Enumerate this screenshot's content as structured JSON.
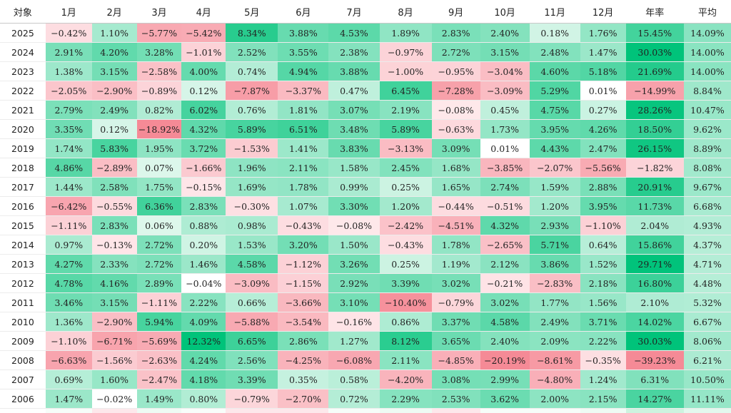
{
  "chart_data": {
    "type": "heatmap",
    "columns": [
      "対象",
      "1月",
      "2月",
      "3月",
      "4月",
      "5月",
      "6月",
      "7月",
      "8月",
      "9月",
      "10月",
      "11月",
      "12月",
      "年率",
      "平均"
    ],
    "rows": [
      {
        "year": "2025",
        "values": [
          "−0.42%",
          "1.10%",
          "−5.77%",
          "−5.42%",
          "8.34%",
          "3.88%",
          "4.53%",
          "1.89%",
          "2.83%",
          "2.40%",
          "0.18%",
          "1.76%",
          "15.45%",
          "14.09%"
        ]
      },
      {
        "year": "2024",
        "values": [
          "2.91%",
          "4.20%",
          "3.28%",
          "−1.01%",
          "2.52%",
          "3.55%",
          "2.38%",
          "−0.97%",
          "2.72%",
          "3.15%",
          "2.48%",
          "1.47%",
          "30.03%",
          "14.00%"
        ]
      },
      {
        "year": "2023",
        "values": [
          "1.38%",
          "3.15%",
          "−2.58%",
          "4.00%",
          "0.74%",
          "4.94%",
          "3.88%",
          "−1.00%",
          "−0.95%",
          "−3.04%",
          "4.60%",
          "5.18%",
          "21.69%",
          "14.00%"
        ]
      },
      {
        "year": "2022",
        "values": [
          "−2.05%",
          "−2.90%",
          "−0.89%",
          "0.12%",
          "−7.87%",
          "−3.37%",
          "0.47%",
          "6.45%",
          "−7.28%",
          "−3.09%",
          "5.29%",
          "0.01%",
          "−14.99%",
          "8.84%"
        ]
      },
      {
        "year": "2021",
        "values": [
          "2.79%",
          "2.49%",
          "0.82%",
          "6.02%",
          "0.76%",
          "1.81%",
          "3.07%",
          "2.19%",
          "−0.08%",
          "0.45%",
          "4.75%",
          "0.27%",
          "28.26%",
          "10.47%"
        ]
      },
      {
        "year": "2020",
        "values": [
          "3.35%",
          "0.12%",
          "−18.92%",
          "4.32%",
          "5.89%",
          "6.51%",
          "3.48%",
          "5.89%",
          "−0.63%",
          "1.73%",
          "3.95%",
          "4.26%",
          "18.50%",
          "9.62%"
        ]
      },
      {
        "year": "2019",
        "values": [
          "1.74%",
          "5.83%",
          "1.95%",
          "3.72%",
          "−1.53%",
          "1.41%",
          "3.83%",
          "−3.13%",
          "3.09%",
          "0.01%",
          "4.43%",
          "2.47%",
          "26.15%",
          "8.89%"
        ]
      },
      {
        "year": "2018",
        "values": [
          "4.86%",
          "−2.89%",
          "0.07%",
          "−1.66%",
          "1.96%",
          "2.11%",
          "1.58%",
          "2.45%",
          "1.68%",
          "−3.85%",
          "−2.07%",
          "−5.56%",
          "−1.82%",
          "8.08%"
        ]
      },
      {
        "year": "2017",
        "values": [
          "1.44%",
          "2.58%",
          "1.75%",
          "−0.15%",
          "1.69%",
          "1.78%",
          "0.99%",
          "0.25%",
          "1.65%",
          "2.74%",
          "1.59%",
          "2.88%",
          "20.91%",
          "9.67%"
        ]
      },
      {
        "year": "2016",
        "values": [
          "−6.42%",
          "−0.55%",
          "6.36%",
          "2.83%",
          "−0.30%",
          "1.07%",
          "3.30%",
          "1.20%",
          "−0.44%",
          "−0.51%",
          "1.20%",
          "3.95%",
          "11.73%",
          "6.68%"
        ]
      },
      {
        "year": "2015",
        "values": [
          "−1.11%",
          "2.83%",
          "0.06%",
          "0.88%",
          "0.98%",
          "−0.43%",
          "−0.08%",
          "−2.42%",
          "−4.51%",
          "4.32%",
          "2.93%",
          "−1.10%",
          "2.04%",
          "4.93%"
        ]
      },
      {
        "year": "2014",
        "values": [
          "0.97%",
          "−0.13%",
          "2.72%",
          "0.20%",
          "1.53%",
          "3.20%",
          "1.50%",
          "−0.43%",
          "1.78%",
          "−2.65%",
          "5.71%",
          "0.64%",
          "15.86%",
          "4.37%"
        ]
      },
      {
        "year": "2013",
        "values": [
          "4.27%",
          "2.33%",
          "2.72%",
          "1.46%",
          "4.58%",
          "−1.12%",
          "3.26%",
          "0.25%",
          "1.19%",
          "2.12%",
          "3.86%",
          "1.52%",
          "29.71%",
          "4.71%"
        ]
      },
      {
        "year": "2012",
        "values": [
          "4.78%",
          "4.16%",
          "2.89%",
          "−0.04%",
          "−3.09%",
          "−1.15%",
          "2.92%",
          "3.39%",
          "3.02%",
          "−0.21%",
          "−2.83%",
          "2.18%",
          "16.80%",
          "4.48%"
        ]
      },
      {
        "year": "2011",
        "values": [
          "3.46%",
          "3.15%",
          "−1.11%",
          "2.22%",
          "0.66%",
          "−3.66%",
          "3.10%",
          "−10.40%",
          "−0.79%",
          "3.02%",
          "1.77%",
          "1.56%",
          "2.10%",
          "5.32%"
        ]
      },
      {
        "year": "2010",
        "values": [
          "1.36%",
          "−2.90%",
          "5.94%",
          "4.09%",
          "−5.88%",
          "−3.54%",
          "−0.16%",
          "0.86%",
          "3.37%",
          "4.58%",
          "2.49%",
          "3.71%",
          "14.02%",
          "6.67%"
        ]
      },
      {
        "year": "2009",
        "values": [
          "−1.10%",
          "−6.71%",
          "−5.69%",
          "12.32%",
          "6.65%",
          "2.86%",
          "1.27%",
          "8.12%",
          "3.65%",
          "2.40%",
          "2.09%",
          "2.22%",
          "30.03%",
          "8.06%"
        ]
      },
      {
        "year": "2008",
        "values": [
          "−6.63%",
          "−1.56%",
          "−2.63%",
          "4.24%",
          "2.56%",
          "−4.25%",
          "−6.08%",
          "2.11%",
          "−4.85%",
          "−20.19%",
          "−8.61%",
          "−0.35%",
          "−39.23%",
          "6.21%"
        ]
      },
      {
        "year": "2007",
        "values": [
          "0.69%",
          "1.60%",
          "−2.47%",
          "4.18%",
          "3.39%",
          "0.35%",
          "0.58%",
          "−4.20%",
          "3.08%",
          "2.99%",
          "−4.80%",
          "1.24%",
          "6.31%",
          "10.50%"
        ]
      },
      {
        "year": "2006",
        "values": [
          "1.47%",
          "−0.02%",
          "1.49%",
          "0.80%",
          "−0.79%",
          "−2.70%",
          "0.72%",
          "2.29%",
          "2.53%",
          "3.62%",
          "2.00%",
          "2.15%",
          "14.27%",
          "11.11%"
        ]
      }
    ],
    "colors": {
      "positive_light": "#eefbf4",
      "positive_strong": "#00c37a",
      "negative_light": "#fff0f2",
      "negative_strong": "#f58a96",
      "neutral": "#ffffff"
    }
  }
}
